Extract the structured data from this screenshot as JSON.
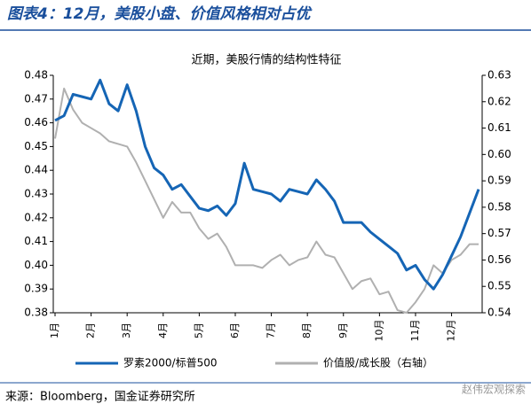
{
  "header": {
    "title": "图表4：12月，美股小盘、价值风格相对占优"
  },
  "chart_data": {
    "type": "line",
    "title": "近期，美股行情的结构性特征",
    "categories": [
      "1月",
      null,
      null,
      null,
      "2月",
      null,
      null,
      null,
      "3月",
      null,
      null,
      null,
      "4月",
      null,
      null,
      null,
      "5月",
      null,
      null,
      null,
      "6月",
      null,
      null,
      null,
      "7月",
      null,
      null,
      null,
      "8月",
      null,
      null,
      null,
      "9月",
      null,
      null,
      null,
      "10月",
      null,
      null,
      null,
      "11月",
      null,
      null,
      null,
      "12月",
      null,
      null,
      null
    ],
    "series": [
      {
        "name": "罗素2000/标普500",
        "color": "#1565b5",
        "axis": "y",
        "values": [
          0.461,
          0.463,
          0.472,
          0.471,
          0.47,
          0.478,
          0.468,
          0.465,
          0.476,
          0.465,
          0.45,
          0.441,
          0.438,
          0.432,
          0.434,
          0.429,
          0.424,
          0.423,
          0.425,
          0.421,
          0.426,
          0.443,
          0.432,
          0.431,
          0.43,
          0.427,
          0.432,
          0.431,
          0.43,
          0.436,
          0.432,
          0.427,
          0.418,
          0.418,
          0.418,
          0.414,
          0.411,
          0.408,
          0.405,
          0.398,
          0.4,
          0.394,
          0.39,
          0.396,
          0.404,
          0.412,
          0.422,
          0.432
        ]
      },
      {
        "name": "价值股/成长股（右轴）",
        "color": "#b0b0b0",
        "axis": "y2",
        "values": [
          0.606,
          0.625,
          0.617,
          0.612,
          0.61,
          0.608,
          0.605,
          0.604,
          0.603,
          0.597,
          0.59,
          0.583,
          0.576,
          0.582,
          0.578,
          0.578,
          0.572,
          0.568,
          0.57,
          0.565,
          0.558,
          0.558,
          0.558,
          0.557,
          0.56,
          0.562,
          0.558,
          0.56,
          0.561,
          0.567,
          0.562,
          0.561,
          0.555,
          0.549,
          0.552,
          0.553,
          0.547,
          0.548,
          0.541,
          0.54,
          0.544,
          0.549,
          0.558,
          0.555,
          0.56,
          0.562,
          0.566,
          0.566
        ]
      }
    ],
    "ylim": [
      0.38,
      0.48
    ],
    "yticks": [
      0.38,
      0.39,
      {
        "value": 0.4,
        "label": "0.40"
      },
      0.41,
      0.42,
      0.43,
      0.44,
      0.45,
      0.46,
      0.47,
      0.48
    ],
    "y2lim": [
      0.54,
      0.63
    ],
    "y2ticks": [
      0.54,
      0.55,
      0.56,
      0.57,
      0.58,
      0.59,
      {
        "value": 0.6,
        "label": "0.60"
      },
      0.61,
      0.62,
      0.63
    ],
    "legend": "bottom",
    "grid": false
  },
  "footer": {
    "source": "来源：Bloomberg，国金证券研究所",
    "watermark": "赵伟宏观探索"
  }
}
